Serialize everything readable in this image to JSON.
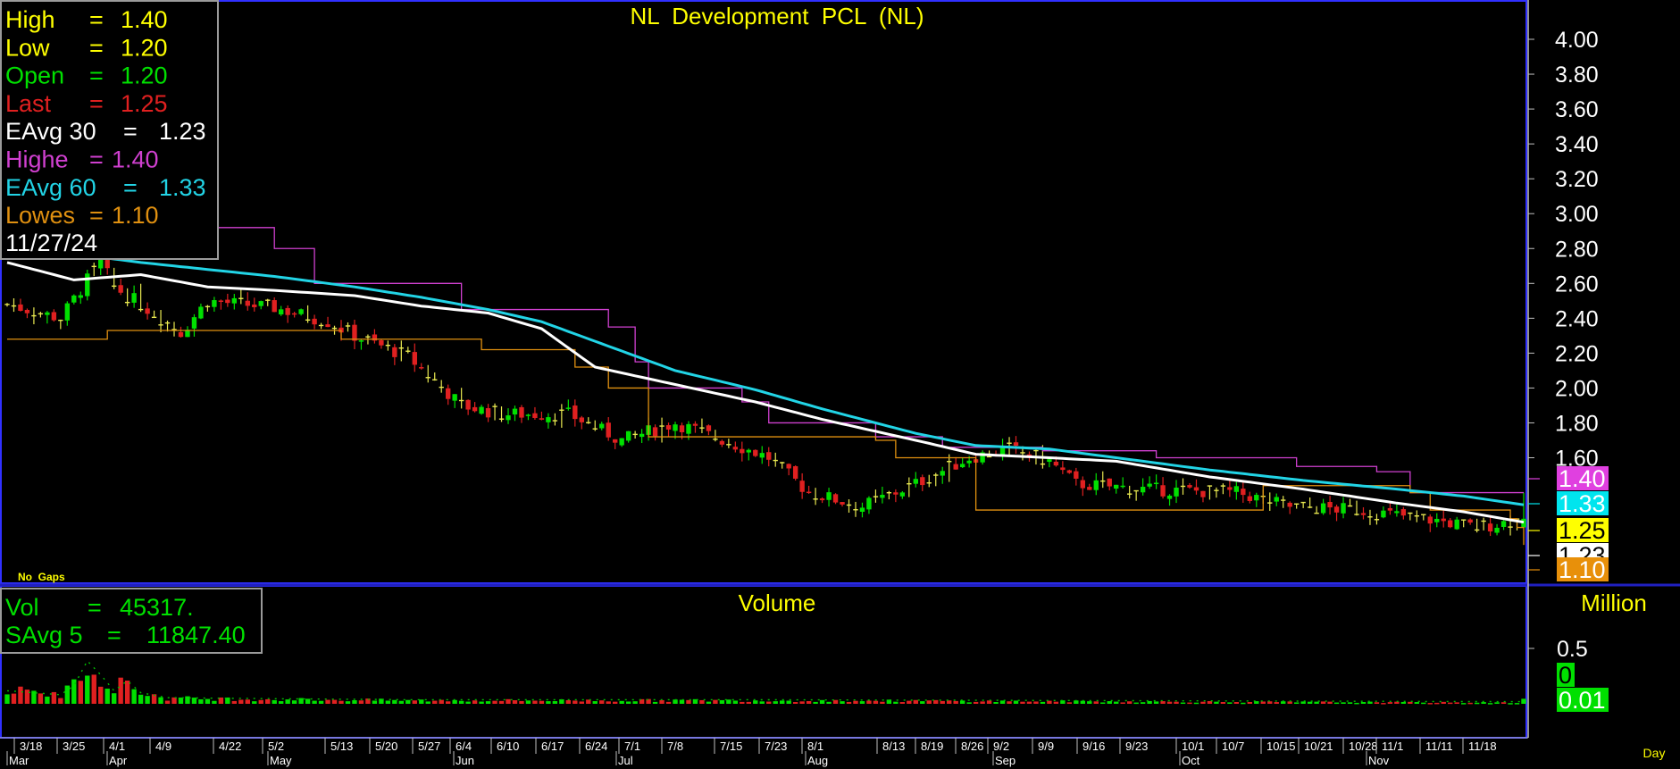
{
  "colors": {
    "bg": "#000000",
    "up": "#00e000",
    "down": "#e02020",
    "ema30": "#ffffff",
    "ema60": "#22d4e6",
    "highest": "#d040d0",
    "lowest": "#e09010",
    "text_yellow": "#ffff00",
    "frame_blue": "#3030ff"
  },
  "price_panel": {
    "title": "NL  Development  PCL  (NL)",
    "no_gaps": "No  Gaps",
    "info": [
      {
        "label": "High",
        "sep": "=",
        "value": "1.40",
        "color": "#ffff00"
      },
      {
        "label": "Low",
        "sep": "=",
        "value": "1.20",
        "color": "#ffff00"
      },
      {
        "label": "Open",
        "sep": "=",
        "value": "1.20",
        "color": "#00e000"
      },
      {
        "label": "Last",
        "sep": "=",
        "value": "1.25",
        "color": "#e02020"
      },
      {
        "label": "EAvg  30",
        "sep": "=",
        "value": "1.23",
        "color": "#ffffff"
      },
      {
        "label": "Highe",
        "sep": "=",
        "value": "1.40",
        "color": "#d040d0"
      },
      {
        "label": "EAvg  60",
        "sep": "=",
        "value": "1.33",
        "color": "#22d4e6"
      },
      {
        "label": "Lowes",
        "sep": "=",
        "value": "1.10",
        "color": "#e09010"
      }
    ],
    "date": "11/27/24",
    "axis_ticks": [
      "4.00",
      "3.80",
      "3.60",
      "3.40",
      "3.20",
      "3.00",
      "2.80",
      "2.60",
      "2.40",
      "2.20",
      "2.00",
      "1.80",
      "1.60"
    ],
    "ylim": [
      1.0,
      4.12
    ],
    "tags": [
      {
        "value": "1.40",
        "bg": "#e040e0",
        "fg": "#ffffff"
      },
      {
        "value": "1.33",
        "bg": "#00e5ee",
        "fg": "#ffffff"
      },
      {
        "value": "1.25",
        "bg": "#ffff00",
        "fg": "#000000"
      },
      {
        "value": "1.23",
        "bg": "#ffffff",
        "fg": "#000000"
      },
      {
        "value": "1.10",
        "bg": "#e8900a",
        "fg": "#ffffff"
      }
    ]
  },
  "volume_panel": {
    "title": "Volume",
    "unit": "Million",
    "info": [
      {
        "label": "Vol",
        "sep": "=",
        "value": "45317.",
        "color": "#00e000"
      },
      {
        "label": "SAvg  5",
        "sep": "=",
        "value": "11847.40",
        "color": "#00e000"
      }
    ],
    "axis_ticks": [
      "0.5"
    ],
    "ylim": [
      0,
      0.75
    ],
    "tags": [
      {
        "value": "0",
        "bg": "#00e000",
        "fg": "#000000"
      },
      {
        "value": "0.01",
        "bg": "#00e000",
        "fg": "#ffffff"
      }
    ]
  },
  "x_axis": {
    "date_labels": [
      "3/18",
      "3/25",
      "4/1",
      "4/9",
      "4/22",
      "5/2",
      "5/13",
      "5/20",
      "5/27",
      "6/4",
      "6/10",
      "6/17",
      "6/24",
      "7/1",
      "7/8",
      "7/15",
      "7/23",
      "8/1",
      "8/13",
      "8/19",
      "8/26",
      "9/2",
      "9/9",
      "9/16",
      "9/23",
      "10/1",
      "10/7",
      "10/15",
      "10/21",
      "10/28",
      "11/1",
      "11/11",
      "11/18"
    ],
    "month_labels": [
      "Mar",
      "Apr",
      "May",
      "Jun",
      "Jul",
      "Aug",
      "Sep",
      "Oct",
      "Nov"
    ],
    "period": "Day"
  },
  "chart_data": {
    "type": "candlestick",
    "title": "NL  Development  PCL  (NL)",
    "series": [
      {
        "name": "EAvg  30",
        "anchors": [
          [
            0,
            2.72
          ],
          [
            10,
            2.62
          ],
          [
            20,
            2.65
          ],
          [
            30,
            2.58
          ],
          [
            40,
            2.56
          ],
          [
            52,
            2.53
          ],
          [
            62,
            2.47
          ],
          [
            72,
            2.43
          ],
          [
            80,
            2.34
          ],
          [
            88,
            2.12
          ],
          [
            100,
            2.02
          ],
          [
            112,
            1.92
          ],
          [
            122,
            1.82
          ],
          [
            136,
            1.7
          ],
          [
            145,
            1.62
          ],
          [
            156,
            1.6
          ],
          [
            166,
            1.58
          ],
          [
            180,
            1.49
          ],
          [
            194,
            1.42
          ],
          [
            208,
            1.34
          ],
          [
            218,
            1.29
          ],
          [
            227,
            1.23
          ]
        ]
      },
      {
        "name": "EAvg  60",
        "anchors": [
          [
            0,
            2.82
          ],
          [
            20,
            2.72
          ],
          [
            40,
            2.64
          ],
          [
            52,
            2.58
          ],
          [
            62,
            2.52
          ],
          [
            72,
            2.45
          ],
          [
            80,
            2.38
          ],
          [
            90,
            2.24
          ],
          [
            100,
            2.1
          ],
          [
            112,
            1.99
          ],
          [
            122,
            1.88
          ],
          [
            136,
            1.74
          ],
          [
            145,
            1.67
          ],
          [
            156,
            1.65
          ],
          [
            166,
            1.6
          ],
          [
            180,
            1.53
          ],
          [
            194,
            1.47
          ],
          [
            208,
            1.42
          ],
          [
            218,
            1.38
          ],
          [
            227,
            1.33
          ]
        ]
      },
      {
        "name": "Highe",
        "steps": [
          [
            0,
            2.92
          ],
          [
            25,
            2.92
          ],
          [
            40,
            2.8
          ],
          [
            46,
            2.6
          ],
          [
            68,
            2.45
          ],
          [
            84,
            2.45
          ],
          [
            90,
            2.35
          ],
          [
            94,
            2.15
          ],
          [
            96,
            2.0
          ],
          [
            110,
            1.92
          ],
          [
            114,
            1.8
          ],
          [
            130,
            1.72
          ],
          [
            140,
            1.66
          ],
          [
            155,
            1.64
          ],
          [
            172,
            1.6
          ],
          [
            193,
            1.55
          ],
          [
            205,
            1.52
          ],
          [
            210,
            1.4
          ],
          [
            227,
            1.4
          ]
        ]
      },
      {
        "name": "Lowes",
        "steps": [
          [
            0,
            2.28
          ],
          [
            15,
            2.33
          ],
          [
            50,
            2.28
          ],
          [
            70,
            2.28
          ],
          [
            71,
            2.22
          ],
          [
            84,
            2.22
          ],
          [
            85,
            2.12
          ],
          [
            90,
            2.0
          ],
          [
            96,
            1.72
          ],
          [
            116,
            1.72
          ],
          [
            130,
            1.7
          ],
          [
            133,
            1.6
          ],
          [
            145,
            1.3
          ],
          [
            184,
            1.3
          ],
          [
            188,
            1.44
          ],
          [
            210,
            1.4
          ],
          [
            213,
            1.3
          ],
          [
            225,
            1.25
          ],
          [
            226,
            1.2
          ],
          [
            227,
            1.1
          ]
        ]
      }
    ],
    "ohlc_anchors": [
      [
        0,
        2.48
      ],
      [
        8,
        2.4
      ],
      [
        12,
        2.62
      ],
      [
        14,
        2.72
      ],
      [
        16,
        2.58
      ],
      [
        20,
        2.48
      ],
      [
        26,
        2.32
      ],
      [
        30,
        2.5
      ],
      [
        40,
        2.46
      ],
      [
        48,
        2.38
      ],
      [
        52,
        2.3
      ],
      [
        60,
        2.18
      ],
      [
        68,
        1.9
      ],
      [
        74,
        1.85
      ],
      [
        84,
        1.85
      ],
      [
        92,
        1.7
      ],
      [
        100,
        1.8
      ],
      [
        110,
        1.66
      ],
      [
        114,
        1.6
      ],
      [
        120,
        1.4
      ],
      [
        128,
        1.32
      ],
      [
        136,
        1.45
      ],
      [
        144,
        1.6
      ],
      [
        150,
        1.65
      ],
      [
        156,
        1.58
      ],
      [
        160,
        1.45
      ],
      [
        170,
        1.42
      ],
      [
        184,
        1.4
      ],
      [
        192,
        1.32
      ],
      [
        202,
        1.3
      ],
      [
        214,
        1.24
      ],
      [
        220,
        1.2
      ],
      [
        227,
        1.25
      ]
    ],
    "volume_anchors": [
      [
        0,
        0.12
      ],
      [
        8,
        0.08
      ],
      [
        10,
        0.17
      ],
      [
        12,
        0.42
      ],
      [
        14,
        0.28
      ],
      [
        16,
        0.12
      ],
      [
        18,
        0.22
      ],
      [
        20,
        0.1
      ],
      [
        24,
        0.05
      ],
      [
        40,
        0.04
      ],
      [
        60,
        0.03
      ],
      [
        110,
        0.03
      ],
      [
        227,
        0.01
      ]
    ],
    "sessions": 228,
    "last_ohlc": {
      "open": 1.2,
      "high": 1.4,
      "low": 1.2,
      "close": 1.25
    },
    "last_volume": 45317,
    "volume_unit": "Million"
  }
}
